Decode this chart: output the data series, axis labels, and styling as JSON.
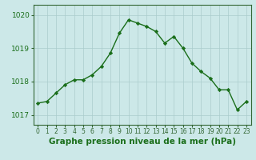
{
  "x": [
    0,
    1,
    2,
    3,
    4,
    5,
    6,
    7,
    8,
    9,
    10,
    11,
    12,
    13,
    14,
    15,
    16,
    17,
    18,
    19,
    20,
    21,
    22,
    23
  ],
  "y": [
    1017.35,
    1017.4,
    1017.65,
    1017.9,
    1018.05,
    1018.05,
    1018.2,
    1018.45,
    1018.85,
    1019.45,
    1019.85,
    1019.75,
    1019.65,
    1019.5,
    1019.15,
    1019.35,
    1019.0,
    1018.55,
    1018.3,
    1018.1,
    1017.75,
    1017.75,
    1017.15,
    1017.4
  ],
  "line_color": "#1a6e1a",
  "marker": "D",
  "marker_size": 2.2,
  "line_width": 1.0,
  "bg_color": "#cce8e8",
  "grid_color": "#aacccc",
  "xlabel": "Graphe pression niveau de la mer (hPa)",
  "xlabel_fontsize": 7.5,
  "xlabel_color": "#1a6e1a",
  "tick_color": "#1a6e1a",
  "axis_color": "#336633",
  "ylim": [
    1016.7,
    1020.3
  ],
  "yticks": [
    1017,
    1018,
    1019,
    1020
  ],
  "ytick_fontsize": 6.5,
  "xtick_fontsize": 5.5,
  "xtick_labels": [
    "0",
    "1",
    "2",
    "3",
    "4",
    "5",
    "6",
    "7",
    "8",
    "9",
    "10",
    "11",
    "12",
    "13",
    "14",
    "15",
    "16",
    "17",
    "18",
    "19",
    "20",
    "21",
    "22",
    "23"
  ]
}
